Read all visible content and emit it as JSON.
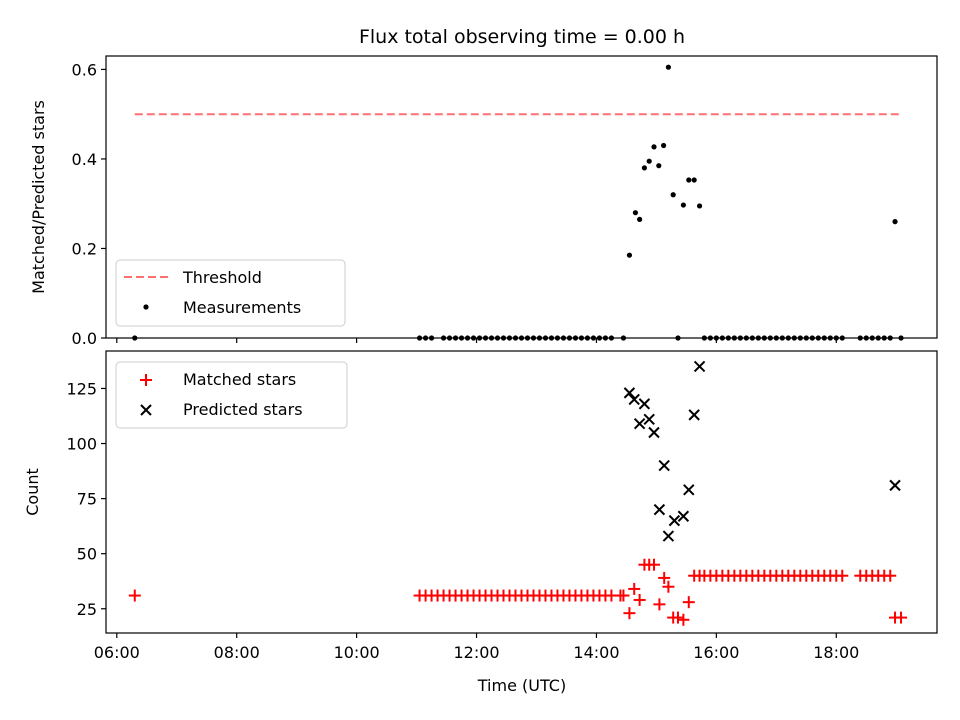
{
  "chart_data": [
    {
      "type": "scatter",
      "title": "Flux total observing time = 0.00 h",
      "xlabel": "",
      "ylabel": "Matched/Predicted stars",
      "xlim": [
        5.82,
        19.68
      ],
      "ylim": [
        0.0,
        0.63
      ],
      "yticks": [
        0.0,
        0.2,
        0.4,
        0.6
      ],
      "ytick_labels": [
        "0.0",
        "0.2",
        "0.4",
        "0.6"
      ],
      "legend_position": "lower-left",
      "legend": [
        "Threshold",
        "Measurements"
      ],
      "series": [
        {
          "name": "Threshold",
          "kind": "dashed-line",
          "color": "#ff7070",
          "x": [
            6.3,
            19.05
          ],
          "y": [
            0.5,
            0.5
          ]
        },
        {
          "name": "Measurements",
          "kind": "dot",
          "color": "#000000",
          "x": [
            6.3,
            11.05,
            11.15,
            11.25,
            11.45,
            11.55,
            11.65,
            11.75,
            11.85,
            11.95,
            12.05,
            12.15,
            12.25,
            12.35,
            12.45,
            12.55,
            12.65,
            12.75,
            12.85,
            12.95,
            13.05,
            13.15,
            13.25,
            13.35,
            13.45,
            13.55,
            13.65,
            13.75,
            13.85,
            13.95,
            14.05,
            14.15,
            14.25,
            14.45,
            14.55,
            14.65,
            14.72,
            14.8,
            14.88,
            14.96,
            15.04,
            15.12,
            15.2,
            15.28,
            15.36,
            15.45,
            15.54,
            15.63,
            15.72,
            15.8,
            15.9,
            16.0,
            16.1,
            16.2,
            16.3,
            16.4,
            16.5,
            16.6,
            16.7,
            16.8,
            16.9,
            17.0,
            17.1,
            17.2,
            17.3,
            17.4,
            17.5,
            17.6,
            17.7,
            17.8,
            17.9,
            18.0,
            18.1,
            18.4,
            18.5,
            18.6,
            18.7,
            18.8,
            18.9,
            18.98,
            19.08
          ],
          "y": [
            0.0,
            0.0,
            0.0,
            0.0,
            0.0,
            0.0,
            0.0,
            0.0,
            0.0,
            0.0,
            0.0,
            0.0,
            0.0,
            0.0,
            0.0,
            0.0,
            0.0,
            0.0,
            0.0,
            0.0,
            0.0,
            0.0,
            0.0,
            0.0,
            0.0,
            0.0,
            0.0,
            0.0,
            0.0,
            0.0,
            0.0,
            0.0,
            0.0,
            0.0,
            0.185,
            0.28,
            0.265,
            0.38,
            0.395,
            0.427,
            0.385,
            0.43,
            0.605,
            0.32,
            0.0,
            0.297,
            0.353,
            0.353,
            0.295,
            0.0,
            0.0,
            0.0,
            0.0,
            0.0,
            0.0,
            0.0,
            0.0,
            0.0,
            0.0,
            0.0,
            0.0,
            0.0,
            0.0,
            0.0,
            0.0,
            0.0,
            0.0,
            0.0,
            0.0,
            0.0,
            0.0,
            0.0,
            0.0,
            0.0,
            0.0,
            0.0,
            0.0,
            0.0,
            0.0,
            0.26,
            0.0
          ]
        }
      ]
    },
    {
      "type": "scatter",
      "title": "",
      "xlabel": "Time (UTC)",
      "ylabel": "Count",
      "xlim": [
        5.82,
        19.68
      ],
      "ylim": [
        14,
        142
      ],
      "xticks": [
        6,
        8,
        10,
        12,
        14,
        16,
        18
      ],
      "xtick_labels": [
        "06:00",
        "08:00",
        "10:00",
        "12:00",
        "14:00",
        "16:00",
        "18:00"
      ],
      "yticks": [
        25,
        50,
        75,
        100,
        125
      ],
      "ytick_labels": [
        "25",
        "50",
        "75",
        "100",
        "125"
      ],
      "legend_position": "upper-left",
      "legend": [
        "Matched stars",
        "Predicted stars"
      ],
      "series": [
        {
          "name": "Matched stars",
          "kind": "plus",
          "color": "#ff0000",
          "x": [
            6.3,
            11.05,
            11.15,
            11.25,
            11.35,
            11.45,
            11.55,
            11.65,
            11.75,
            11.85,
            11.95,
            12.05,
            12.15,
            12.25,
            12.35,
            12.45,
            12.55,
            12.65,
            12.75,
            12.85,
            12.95,
            13.05,
            13.15,
            13.25,
            13.35,
            13.45,
            13.55,
            13.65,
            13.75,
            13.85,
            13.95,
            14.05,
            14.15,
            14.25,
            14.4,
            14.45,
            14.55,
            14.63,
            14.72,
            14.8,
            14.88,
            14.96,
            15.05,
            15.13,
            15.2,
            15.28,
            15.36,
            15.45,
            15.54,
            15.63,
            15.72,
            15.8,
            15.9,
            16.0,
            16.1,
            16.2,
            16.3,
            16.4,
            16.5,
            16.6,
            16.7,
            16.8,
            16.9,
            17.0,
            17.1,
            17.2,
            17.3,
            17.4,
            17.5,
            17.6,
            17.7,
            17.8,
            17.9,
            18.0,
            18.1,
            18.4,
            18.5,
            18.6,
            18.7,
            18.8,
            18.9,
            18.98,
            19.08
          ],
          "y": [
            31,
            31,
            31,
            31,
            31,
            31,
            31,
            31,
            31,
            31,
            31,
            31,
            31,
            31,
            31,
            31,
            31,
            31,
            31,
            31,
            31,
            31,
            31,
            31,
            31,
            31,
            31,
            31,
            31,
            31,
            31,
            31,
            31,
            31,
            31,
            31,
            23,
            34,
            29,
            45,
            45,
            45,
            27,
            39,
            35,
            21,
            21,
            20,
            28,
            40,
            40,
            40,
            40,
            40,
            40,
            40,
            40,
            40,
            40,
            40,
            40,
            40,
            40,
            40,
            40,
            40,
            40,
            40,
            40,
            40,
            40,
            40,
            40,
            40,
            40,
            40,
            40,
            40,
            40,
            40,
            40,
            21,
            21
          ]
        },
        {
          "name": "Predicted stars",
          "kind": "x",
          "color": "#000000",
          "x": [
            14.55,
            14.63,
            14.72,
            14.8,
            14.88,
            14.96,
            15.05,
            15.13,
            15.2,
            15.3,
            15.45,
            15.54,
            15.63,
            15.72,
            18.98
          ],
          "y": [
            123,
            120,
            109,
            118,
            111,
            105,
            70,
            90,
            58,
            65,
            67,
            79,
            113,
            135,
            81
          ]
        }
      ]
    }
  ]
}
